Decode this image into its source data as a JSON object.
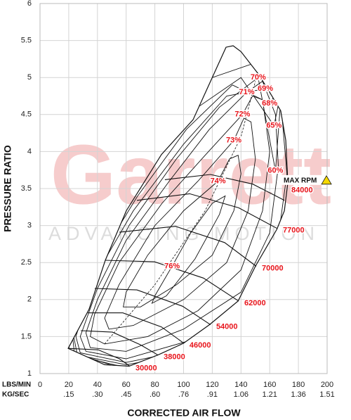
{
  "chart_data": {
    "type": "compressor_map",
    "xlabel": "CORRECTED AIR FLOW",
    "ylabel": "PRESSURE RATIO",
    "x_unit_label": "LBS/MIN",
    "x2_unit_label": "KG/SEC",
    "xlim": [
      0,
      200
    ],
    "ylim": [
      1,
      6
    ],
    "xticks": [
      0,
      20,
      40,
      60,
      80,
      100,
      120,
      140,
      160,
      180,
      200
    ],
    "x2ticks": [
      {
        "value": 20,
        "label": ".15"
      },
      {
        "value": 40,
        "label": ".30"
      },
      {
        "value": 60,
        "label": ".45"
      },
      {
        "value": 80,
        "label": ".60"
      },
      {
        "value": 100,
        "label": ".76"
      },
      {
        "value": 120,
        "label": ".91"
      },
      {
        "value": 140,
        "label": "1.06"
      },
      {
        "value": 160,
        "label": "1.21"
      },
      {
        "value": 180,
        "label": "1.36"
      },
      {
        "value": 200,
        "label": "1.51"
      }
    ],
    "yticks": [
      1,
      1.5,
      2,
      2.5,
      3,
      3.5,
      4,
      4.5,
      5,
      5.5,
      6
    ],
    "grid": true,
    "line_color": "#111111",
    "label_color": "#e8141b",
    "watermark": {
      "title": "Garrett",
      "subtitle": "ADVANCING MOTION"
    },
    "max_rpm_label": "MAX RPM",
    "boundary": {
      "x": [
        19.6,
        34.2,
        45.5,
        60.1,
        84.6,
        106.6,
        129.6,
        134.5,
        140,
        152,
        160,
        167.7,
        171.2,
        172.6,
        170.2,
        165,
        150,
        138,
        118,
        100,
        82,
        62,
        45,
        30,
        19.6
      ],
      "y": [
        1.34,
        1.87,
        2.53,
        3.2,
        3.96,
        4.43,
        5.41,
        5.43,
        5.35,
        5.05,
        4.8,
        4.55,
        4.15,
        3.58,
        3.2,
        2.95,
        2.45,
        1.98,
        1.66,
        1.41,
        1.25,
        1.1,
        1.12,
        1.25,
        1.34
      ]
    },
    "ridge": {
      "x": [
        45,
        80,
        115,
        140,
        150
      ],
      "y": [
        1.4,
        2.2,
        3.2,
        4.2,
        4.95
      ]
    },
    "speed_lines": [
      {
        "speed": 30000,
        "x": [
          19.6,
          40.6,
          55.3,
          62.6
        ],
        "y": [
          1.34,
          1.32,
          1.2,
          1.1
        ]
      },
      {
        "speed": 38000,
        "x": [
          28.4,
          50.4,
          69.9,
          82.2
        ],
        "y": [
          1.58,
          1.56,
          1.39,
          1.25
        ]
      },
      {
        "speed": 46000,
        "x": [
          33.3,
          57.7,
          84.6,
          100.2
        ],
        "y": [
          1.82,
          1.82,
          1.63,
          1.41
        ]
      },
      {
        "speed": 54000,
        "x": [
          38.1,
          67.5,
          99.3,
          118.8
        ],
        "y": [
          2.15,
          2.13,
          1.91,
          1.66
        ]
      },
      {
        "speed": 62000,
        "x": [
          45.5,
          79.7,
          113.9,
          138.4
        ],
        "y": [
          2.53,
          2.51,
          2.29,
          1.98
        ]
      },
      {
        "speed": 70000,
        "x": [
          55.3,
          94.4,
          128.6,
          150.6
        ],
        "y": [
          2.91,
          2.99,
          2.77,
          2.45
        ]
      },
      {
        "speed": 77000,
        "x": [
          67.5,
          104.2,
          138.4,
          165.3
        ],
        "y": [
          3.34,
          3.43,
          3.24,
          2.96
        ]
      },
      {
        "speed": 84000,
        "x": [
          87,
          118.8,
          148.2,
          170.2
        ],
        "y": [
          3.62,
          3.69,
          3.56,
          3.34
        ]
      }
    ],
    "efficiency_islands": [
      {
        "name": "76%",
        "x": [
          92,
          80,
          78,
          88,
          108,
          125,
          129,
          120,
          105
        ],
        "y": [
          2.45,
          2.05,
          1.95,
          2.05,
          2.55,
          3.15,
          3.4,
          3.3,
          2.9
        ]
      },
      {
        "name": "74%",
        "x": [
          124,
          100,
          75,
          60,
          58,
          70,
          95,
          120,
          135,
          140,
          138,
          132
        ],
        "y": [
          3.6,
          3.2,
          2.6,
          2.1,
          1.9,
          1.9,
          2.2,
          2.6,
          3.2,
          3.7,
          3.95,
          3.9
        ]
      },
      {
        "name": "73%",
        "x": [
          135,
          110,
          80,
          55,
          45,
          48,
          65,
          100,
          130,
          145,
          150,
          147,
          142
        ],
        "y": [
          4.15,
          3.6,
          3.0,
          2.2,
          1.75,
          1.6,
          1.65,
          2.0,
          2.5,
          3.2,
          3.9,
          4.4,
          4.45
        ]
      },
      {
        "name": "72%",
        "x": [
          141,
          115,
          85,
          55,
          38,
          35,
          45,
          75,
          110,
          140,
          155,
          160,
          155,
          148
        ],
        "y": [
          4.5,
          3.95,
          3.3,
          2.5,
          1.8,
          1.5,
          1.4,
          1.5,
          1.85,
          2.4,
          3.2,
          4.0,
          4.7,
          4.75
        ]
      },
      {
        "name": "71%",
        "x": [
          144,
          118,
          90,
          60,
          40,
          32,
          35,
          60,
          100,
          140,
          160,
          166,
          164,
          155
        ],
        "y": [
          4.8,
          4.3,
          3.6,
          2.8,
          2.0,
          1.55,
          1.35,
          1.3,
          1.6,
          2.1,
          2.9,
          3.8,
          4.5,
          4.95
        ]
      },
      {
        "name": "70%",
        "x": [
          152,
          125,
          95,
          62,
          40,
          28,
          32,
          60,
          105,
          145,
          165,
          172,
          168,
          160
        ],
        "y": [
          5.0,
          4.6,
          3.9,
          3.0,
          2.15,
          1.5,
          1.3,
          1.2,
          1.45,
          1.95,
          2.7,
          3.7,
          4.6,
          5.05
        ]
      },
      {
        "name": "69%",
        "x": [
          157,
          130,
          100,
          65,
          38,
          25,
          28,
          60,
          110,
          152,
          170,
          176,
          172,
          163
        ],
        "y": [
          4.85,
          4.75,
          4.1,
          3.2,
          2.3,
          1.5,
          1.28,
          1.15,
          1.35,
          1.85,
          2.6,
          3.6,
          4.5,
          4.95
        ]
      },
      {
        "name": "68%",
        "x": [
          160,
          134,
          102,
          68,
          38,
          23,
          26,
          60,
          112,
          156,
          174,
          180,
          176,
          168
        ],
        "y": [
          4.65,
          4.9,
          4.3,
          3.4,
          2.45,
          1.55,
          1.25,
          1.12,
          1.3,
          1.75,
          2.5,
          3.5,
          4.4,
          4.9
        ]
      },
      {
        "name": "65%",
        "x": [
          163,
          140,
          110,
          72,
          40,
          22,
          24,
          60,
          115,
          160,
          178,
          184,
          178,
          170
        ],
        "y": [
          4.35,
          5.0,
          4.6,
          3.7,
          2.7,
          1.65,
          1.25,
          1.08,
          1.22,
          1.6,
          2.3,
          3.4,
          4.5,
          5.0
        ]
      },
      {
        "name": "60%",
        "x": [
          164,
          150,
          120,
          80,
          45,
          22,
          20,
          60,
          120,
          168,
          186,
          190,
          186,
          170
        ],
        "y": [
          3.74,
          5.2,
          5.0,
          4.1,
          3.0,
          1.8,
          1.3,
          1.05,
          1.12,
          1.45,
          2.2,
          3.3,
          4.5,
          5.3
        ]
      }
    ]
  }
}
